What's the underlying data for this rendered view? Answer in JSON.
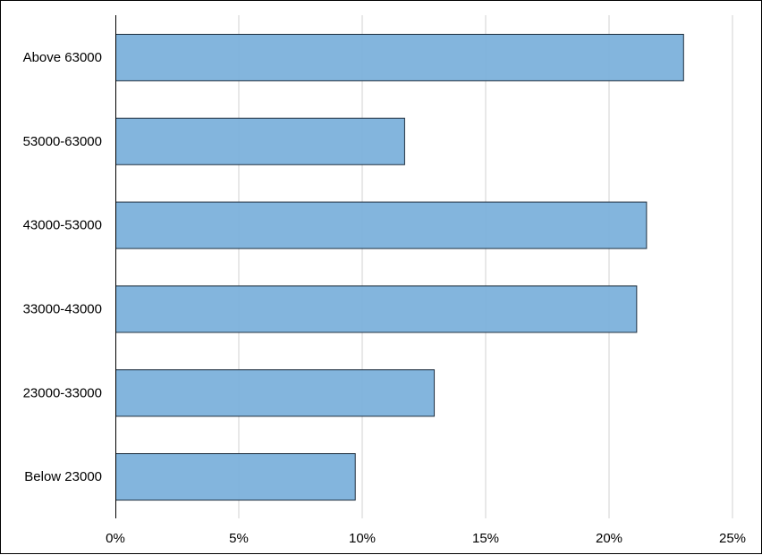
{
  "chart_data": {
    "type": "bar",
    "orientation": "horizontal",
    "title": "",
    "xlabel": "",
    "ylabel": "",
    "categories": [
      "Above 63000",
      "53000-63000",
      "43000-53000",
      "33000-43000",
      "23000-33000",
      "Below 23000"
    ],
    "values": [
      23.0,
      11.7,
      21.5,
      21.1,
      12.9,
      9.7
    ],
    "value_unit": "%",
    "xlim": [
      0,
      25
    ],
    "x_ticks": [
      "0%",
      "5%",
      "10%",
      "15%",
      "20%",
      "25%"
    ],
    "x_tick_values": [
      0,
      5,
      10,
      15,
      20,
      25
    ],
    "grid": "vertical",
    "legend": "none",
    "colors": {
      "bar_fill": "#7fb3dc",
      "bar_stroke": "#1f2f3f",
      "grid": "#d0d0d0",
      "axis": "#000000"
    }
  }
}
